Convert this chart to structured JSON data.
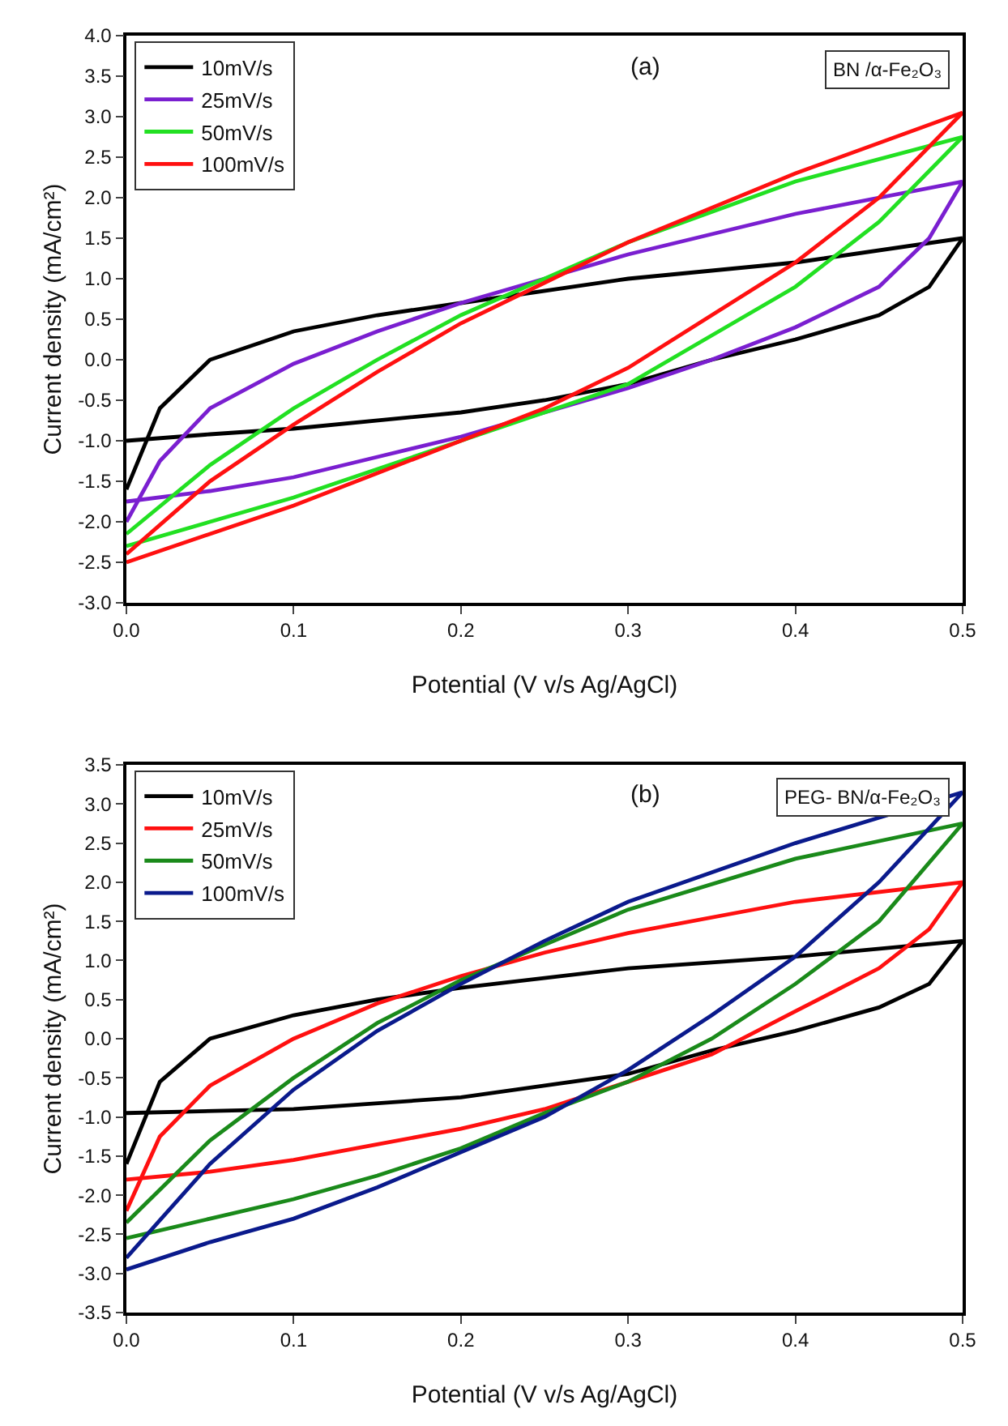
{
  "chart_data": [
    {
      "type": "line",
      "xlabel": "Potential (V v/s Ag/AgCl)",
      "ylabel": "Current density (mA/cm²)",
      "annotations": [
        "(a)",
        "BN /α-Fe₂O₃"
      ],
      "xlim": [
        0,
        0.5
      ],
      "xticks": [
        {
          "value": 0,
          "label": "0.0"
        },
        0.1,
        0.2,
        0.3,
        0.4,
        0.5
      ],
      "ylim": [
        -3,
        4
      ],
      "yticks": [
        {
          "value": -3,
          "label": "-3.0"
        },
        -2.5,
        {
          "value": -2,
          "label": "-2.0"
        },
        -1.5,
        {
          "value": -1,
          "label": "-1.0"
        },
        -0.5,
        {
          "value": 0,
          "label": "0.0"
        },
        0.5,
        {
          "value": 1,
          "label": "1.0"
        },
        1.5,
        {
          "value": 2,
          "label": "2.0"
        },
        2.5,
        {
          "value": 3,
          "label": "3.0"
        },
        3.5,
        {
          "value": 4,
          "label": "4.0"
        }
      ],
      "grid": false,
      "legend": "top left",
      "marker": "none",
      "line_style": "solid",
      "series": [
        {
          "name": "10mV/s",
          "color": "#000000",
          "x": [
            0,
            0.02,
            0.05,
            0.1,
            0.15,
            0.2,
            0.3,
            0.4,
            0.5
          ],
          "values": [
            -1.6,
            -0.6,
            0.0,
            0.35,
            0.55,
            0.7,
            1.0,
            1.2,
            1.5
          ]
        },
        {
          "color": "#000000",
          "x": [
            0.5,
            0.48,
            0.45,
            0.4,
            0.35,
            0.3,
            0.25,
            0.2,
            0.1,
            0.05,
            0
          ],
          "values": [
            1.5,
            0.9,
            0.55,
            0.25,
            0.0,
            -0.3,
            -0.5,
            -0.65,
            -0.85,
            -0.92,
            -1.0
          ]
        },
        {
          "name": "25mV/s",
          "color": "#7a1fd0",
          "x": [
            0,
            0.02,
            0.05,
            0.1,
            0.15,
            0.2,
            0.25,
            0.3,
            0.4,
            0.5
          ],
          "values": [
            -2.0,
            -1.25,
            -0.6,
            -0.05,
            0.35,
            0.7,
            1.0,
            1.3,
            1.8,
            2.2
          ]
        },
        {
          "color": "#7a1fd0",
          "x": [
            0.5,
            0.48,
            0.45,
            0.4,
            0.35,
            0.3,
            0.25,
            0.2,
            0.15,
            0.1,
            0.05,
            0
          ],
          "values": [
            2.2,
            1.5,
            0.9,
            0.4,
            0.0,
            -0.35,
            -0.65,
            -0.95,
            -1.2,
            -1.45,
            -1.62,
            -1.75
          ]
        },
        {
          "name": "50mV/s",
          "color": "#22e022",
          "x": [
            0,
            0.05,
            0.1,
            0.15,
            0.2,
            0.25,
            0.3,
            0.4,
            0.5
          ],
          "values": [
            -2.15,
            -1.3,
            -0.6,
            0.0,
            0.55,
            1.0,
            1.45,
            2.2,
            2.75
          ]
        },
        {
          "color": "#22e022",
          "x": [
            0.5,
            0.45,
            0.4,
            0.35,
            0.3,
            0.25,
            0.2,
            0.15,
            0.1,
            0.05,
            0
          ],
          "values": [
            2.75,
            1.7,
            0.9,
            0.3,
            -0.3,
            -0.65,
            -1.0,
            -1.35,
            -1.7,
            -2.0,
            -2.3
          ]
        },
        {
          "name": "100mV/s",
          "color": "#ff1010",
          "x": [
            0,
            0.05,
            0.1,
            0.15,
            0.2,
            0.25,
            0.3,
            0.4,
            0.5
          ],
          "values": [
            -2.4,
            -1.5,
            -0.8,
            -0.15,
            0.45,
            0.95,
            1.45,
            2.3,
            3.05
          ]
        },
        {
          "color": "#ff1010",
          "x": [
            0.5,
            0.45,
            0.4,
            0.35,
            0.3,
            0.25,
            0.2,
            0.15,
            0.1,
            0.05,
            0
          ],
          "values": [
            3.05,
            2.0,
            1.2,
            0.55,
            -0.1,
            -0.6,
            -1.0,
            -1.4,
            -1.8,
            -2.15,
            -2.5
          ]
        }
      ]
    },
    {
      "type": "line",
      "xlabel": "Potential (V v/s Ag/AgCl)",
      "ylabel": "Current density (mA/cm²)",
      "annotations": [
        "(b)",
        "PEG- BN/α-Fe₂O₃"
      ],
      "xlim": [
        0,
        0.5
      ],
      "xticks": [
        {
          "value": 0,
          "label": "0.0"
        },
        0.1,
        0.2,
        0.3,
        0.4,
        0.5
      ],
      "ylim": [
        -3.5,
        3.5
      ],
      "yticks": [
        -3.5,
        {
          "value": -3,
          "label": "-3.0"
        },
        -2.5,
        {
          "value": -2,
          "label": "-2.0"
        },
        -1.5,
        {
          "value": -1,
          "label": "-1.0"
        },
        -0.5,
        {
          "value": 0,
          "label": "0.0"
        },
        0.5,
        {
          "value": 1,
          "label": "1.0"
        },
        1.5,
        {
          "value": 2,
          "label": "2.0"
        },
        2.5,
        {
          "value": 3,
          "label": "3.0"
        },
        3.5
      ],
      "grid": false,
      "legend": "top left",
      "marker": "none",
      "line_style": "solid",
      "series": [
        {
          "name": "10mV/s",
          "color": "#000000",
          "x": [
            0,
            0.02,
            0.05,
            0.1,
            0.15,
            0.2,
            0.3,
            0.4,
            0.5
          ],
          "values": [
            -1.6,
            -0.55,
            0.0,
            0.3,
            0.5,
            0.65,
            0.9,
            1.05,
            1.25
          ]
        },
        {
          "color": "#000000",
          "x": [
            0.5,
            0.48,
            0.45,
            0.4,
            0.35,
            0.3,
            0.25,
            0.2,
            0.1,
            0
          ],
          "values": [
            1.25,
            0.7,
            0.4,
            0.1,
            -0.15,
            -0.45,
            -0.6,
            -0.75,
            -0.9,
            -0.95
          ]
        },
        {
          "name": "25mV/s",
          "color": "#ff1010",
          "x": [
            0,
            0.02,
            0.05,
            0.1,
            0.15,
            0.2,
            0.25,
            0.3,
            0.4,
            0.5
          ],
          "values": [
            -2.2,
            -1.25,
            -0.6,
            0.0,
            0.45,
            0.8,
            1.1,
            1.35,
            1.75,
            2.0
          ]
        },
        {
          "color": "#ff1010",
          "x": [
            0.5,
            0.48,
            0.45,
            0.4,
            0.35,
            0.3,
            0.25,
            0.2,
            0.15,
            0.1,
            0.05,
            0
          ],
          "values": [
            2.0,
            1.4,
            0.9,
            0.35,
            -0.2,
            -0.55,
            -0.9,
            -1.15,
            -1.35,
            -1.55,
            -1.7,
            -1.8
          ]
        },
        {
          "name": "50mV/s",
          "color": "#1a8a1a",
          "x": [
            0,
            0.05,
            0.1,
            0.15,
            0.2,
            0.25,
            0.3,
            0.4,
            0.5
          ],
          "values": [
            -2.35,
            -1.3,
            -0.5,
            0.2,
            0.75,
            1.2,
            1.65,
            2.3,
            2.75
          ]
        },
        {
          "color": "#1a8a1a",
          "x": [
            0.5,
            0.45,
            0.4,
            0.35,
            0.3,
            0.25,
            0.2,
            0.15,
            0.1,
            0.05,
            0
          ],
          "values": [
            2.75,
            1.5,
            0.7,
            0.0,
            -0.55,
            -0.95,
            -1.4,
            -1.75,
            -2.05,
            -2.3,
            -2.55
          ]
        },
        {
          "name": "100mV/s",
          "color": "#0a1a8c",
          "x": [
            0,
            0.05,
            0.1,
            0.15,
            0.2,
            0.25,
            0.3,
            0.4,
            0.5
          ],
          "values": [
            -2.8,
            -1.6,
            -0.65,
            0.1,
            0.7,
            1.25,
            1.75,
            2.5,
            3.15
          ]
        },
        {
          "color": "#0a1a8c",
          "x": [
            0.5,
            0.45,
            0.4,
            0.35,
            0.3,
            0.25,
            0.2,
            0.15,
            0.1,
            0.05,
            0
          ],
          "values": [
            3.15,
            2.0,
            1.05,
            0.3,
            -0.4,
            -1.0,
            -1.45,
            -1.9,
            -2.3,
            -2.6,
            -2.95
          ]
        }
      ]
    }
  ]
}
